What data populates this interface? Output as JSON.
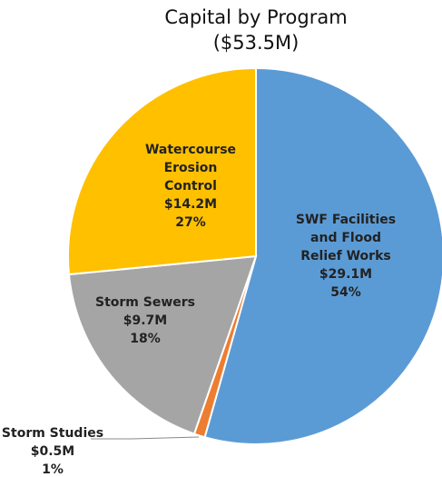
{
  "chart_data": {
    "type": "pie",
    "title": "Capital by Program",
    "subtitle": "($53.5M)",
    "categories": [
      [
        "SWF Facilities",
        "and Flood",
        "Relief Works"
      ],
      [
        "Storm Studies"
      ],
      [
        "Storm Sewers"
      ],
      [
        "Watercourse",
        "Erosion",
        "Control"
      ]
    ],
    "values": [
      29.1,
      0.5,
      9.7,
      14.2
    ],
    "value_labels": [
      "$29.1M",
      "$0.5M",
      "$9.7M",
      "$14.2M"
    ],
    "percents": [
      54,
      1,
      18,
      27
    ],
    "percent_labels": [
      "54%",
      "1%",
      "18%",
      "27%"
    ],
    "colors": [
      "#5b9bd5",
      "#ed7d31",
      "#a5a5a5",
      "#ffc000"
    ]
  }
}
